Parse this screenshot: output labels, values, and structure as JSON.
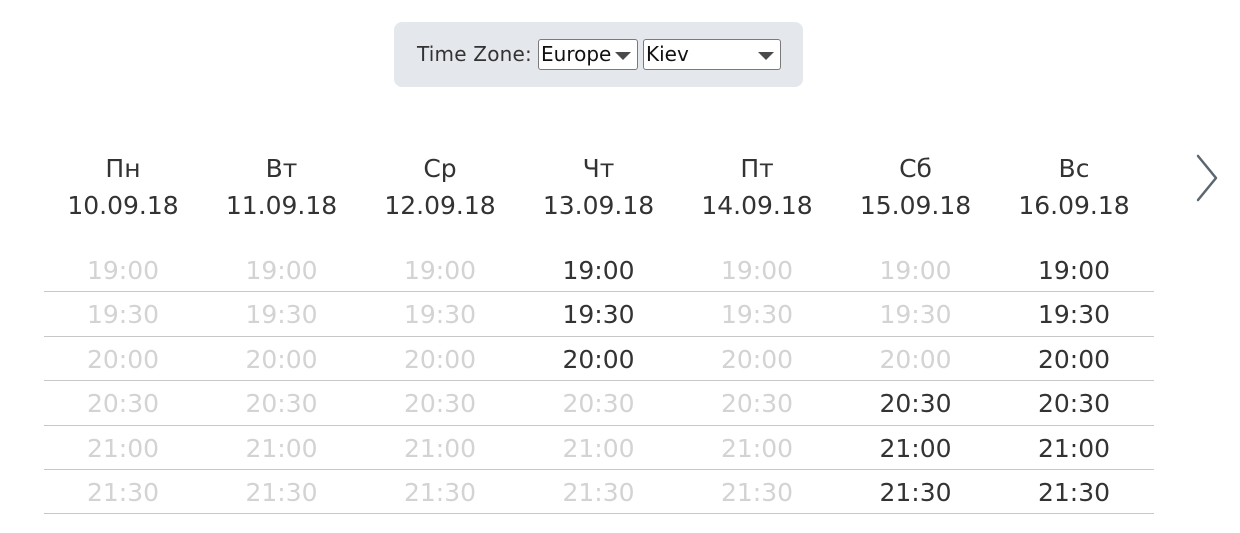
{
  "timezone": {
    "label": "Time Zone:",
    "region": "Europe",
    "city": "Kiev"
  },
  "days": [
    {
      "weekday": "Пн",
      "date": "10.09.18"
    },
    {
      "weekday": "Вт",
      "date": "11.09.18"
    },
    {
      "weekday": "Ср",
      "date": "12.09.18"
    },
    {
      "weekday": "Чт",
      "date": "13.09.18"
    },
    {
      "weekday": "Пт",
      "date": "14.09.18"
    },
    {
      "weekday": "Сб",
      "date": "15.09.18"
    },
    {
      "weekday": "Вс",
      "date": "16.09.18"
    }
  ],
  "times": [
    "19:00",
    "19:30",
    "20:00",
    "20:30",
    "21:00",
    "21:30"
  ],
  "availability": [
    [
      false,
      false,
      false,
      true,
      false,
      false,
      true
    ],
    [
      false,
      false,
      false,
      true,
      false,
      false,
      true
    ],
    [
      false,
      false,
      false,
      true,
      false,
      false,
      true
    ],
    [
      false,
      false,
      false,
      false,
      false,
      true,
      true
    ],
    [
      false,
      false,
      false,
      false,
      false,
      true,
      true
    ],
    [
      false,
      false,
      false,
      false,
      false,
      true,
      true
    ]
  ],
  "icons": {
    "next": "chevron-right-icon",
    "dropdown": "caret-down-icon"
  },
  "colors": {
    "available": "#333333",
    "unavailable": "#d3d3d3",
    "timezone_bg": "#e4e8ec",
    "divider": "#c8c8c8"
  }
}
